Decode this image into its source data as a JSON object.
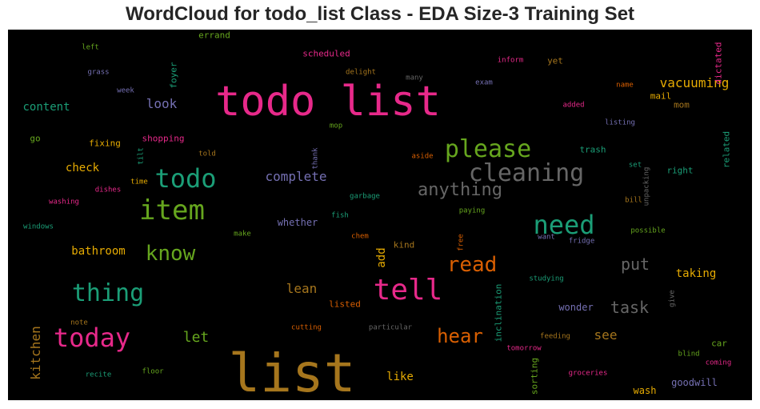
{
  "chart_data": {
    "type": "wordcloud",
    "title": "WordCloud for todo_list Class - EDA Size-3 Training Set",
    "words": [
      {
        "text": "list",
        "color": "#a6761d"
      },
      {
        "text": "todo list",
        "color": "#e7298a"
      },
      {
        "text": "tell",
        "color": "#e7298a"
      },
      {
        "text": "item",
        "color": "#66a61e"
      },
      {
        "text": "todo",
        "color": "#1b9e77"
      },
      {
        "text": "please",
        "color": "#66a61e"
      },
      {
        "text": "cleaning",
        "color": "#666666"
      },
      {
        "text": "need",
        "color": "#1b9e77"
      },
      {
        "text": "today",
        "color": "#e7298a"
      },
      {
        "text": "thing",
        "color": "#1b9e77"
      },
      {
        "text": "know",
        "color": "#66a61e"
      },
      {
        "text": "anything",
        "color": "#666666"
      },
      {
        "text": "read",
        "color": "#d95f02"
      },
      {
        "text": "hear",
        "color": "#d95f02"
      },
      {
        "text": "vacuuming",
        "color": "#e6ab02"
      },
      {
        "text": "put",
        "color": "#666666"
      },
      {
        "text": "task",
        "color": "#666666"
      },
      {
        "text": "complete",
        "color": "#7570b3"
      },
      {
        "text": "look",
        "color": "#7570b3"
      },
      {
        "text": "let",
        "color": "#66a61e"
      },
      {
        "text": "see",
        "color": "#a6761d"
      },
      {
        "text": "lean",
        "color": "#a6761d"
      },
      {
        "text": "bathroom",
        "color": "#e6ab02"
      },
      {
        "text": "kitchen",
        "color": "#a6761d"
      },
      {
        "text": "content",
        "color": "#1b9e77"
      },
      {
        "text": "check",
        "color": "#e6ab02"
      },
      {
        "text": "taking",
        "color": "#e6ab02"
      },
      {
        "text": "add",
        "color": "#e6ab02"
      },
      {
        "text": "like",
        "color": "#e6ab02"
      },
      {
        "text": "whether",
        "color": "#7570b3"
      },
      {
        "text": "wonder",
        "color": "#7570b3"
      },
      {
        "text": "inclination",
        "color": "#1b9e77"
      },
      {
        "text": "goodwill",
        "color": "#7570b3"
      },
      {
        "text": "wash",
        "color": "#e6ab02"
      },
      {
        "text": "listed",
        "color": "#d95f02"
      },
      {
        "text": "mail",
        "color": "#e6ab02"
      },
      {
        "text": "mom",
        "color": "#a6761d"
      },
      {
        "text": "right",
        "color": "#1b9e77"
      },
      {
        "text": "related",
        "color": "#1b9e77"
      },
      {
        "text": "trash",
        "color": "#1b9e77"
      },
      {
        "text": "car",
        "color": "#66a61e"
      },
      {
        "text": "kind",
        "color": "#a6761d"
      },
      {
        "text": "fixing",
        "color": "#e6ab02"
      },
      {
        "text": "shopping",
        "color": "#e7298a"
      },
      {
        "text": "scheduled",
        "color": "#e7298a"
      },
      {
        "text": "errand",
        "color": "#66a61e"
      },
      {
        "text": "yet",
        "color": "#a6761d"
      },
      {
        "text": "go",
        "color": "#66a61e"
      },
      {
        "text": "foyer",
        "color": "#1b9e77"
      },
      {
        "text": "dictated",
        "color": "#e7298a"
      },
      {
        "text": "sorting",
        "color": "#66a61e"
      },
      {
        "text": "left",
        "color": "#66a61e"
      },
      {
        "text": "grass",
        "color": "#7570b3"
      },
      {
        "text": "week",
        "color": "#7570b3"
      },
      {
        "text": "delight",
        "color": "#a6761d"
      },
      {
        "text": "many",
        "color": "#666666"
      },
      {
        "text": "inform",
        "color": "#e7298a"
      },
      {
        "text": "exam",
        "color": "#7570b3"
      },
      {
        "text": "name",
        "color": "#d95f02"
      },
      {
        "text": "added",
        "color": "#e7298a"
      },
      {
        "text": "listing",
        "color": "#7570b3"
      },
      {
        "text": "mop",
        "color": "#66a61e"
      },
      {
        "text": "tilt",
        "color": "#1b9e77"
      },
      {
        "text": "told",
        "color": "#a6761d"
      },
      {
        "text": "thank",
        "color": "#7570b3"
      },
      {
        "text": "aside",
        "color": "#d95f02"
      },
      {
        "text": "time",
        "color": "#e6ab02"
      },
      {
        "text": "dishes",
        "color": "#e7298a"
      },
      {
        "text": "washing",
        "color": "#e7298a"
      },
      {
        "text": "garbage",
        "color": "#1b9e77"
      },
      {
        "text": "set",
        "color": "#1b9e77"
      },
      {
        "text": "unpacking",
        "color": "#666666"
      },
      {
        "text": "bill",
        "color": "#a6761d"
      },
      {
        "text": "paying",
        "color": "#66a61e"
      },
      {
        "text": "windows",
        "color": "#1b9e77"
      },
      {
        "text": "make",
        "color": "#66a61e"
      },
      {
        "text": "fish",
        "color": "#1b9e77"
      },
      {
        "text": "chem",
        "color": "#d95f02"
      },
      {
        "text": "free",
        "color": "#d95f02"
      },
      {
        "text": "want",
        "color": "#7570b3"
      },
      {
        "text": "fridge",
        "color": "#7570b3"
      },
      {
        "text": "possible",
        "color": "#66a61e"
      },
      {
        "text": "studying",
        "color": "#1b9e77"
      },
      {
        "text": "give",
        "color": "#666666"
      },
      {
        "text": "note",
        "color": "#a6761d"
      },
      {
        "text": "cutting",
        "color": "#d95f02"
      },
      {
        "text": "particular",
        "color": "#666666"
      },
      {
        "text": "feeding",
        "color": "#a6761d"
      },
      {
        "text": "tomorrow",
        "color": "#e7298a"
      },
      {
        "text": "blind",
        "color": "#66a61e"
      },
      {
        "text": "coming",
        "color": "#e7298a"
      },
      {
        "text": "recite",
        "color": "#1b9e77"
      },
      {
        "text": "floor",
        "color": "#66a61e"
      },
      {
        "text": "groceries",
        "color": "#e7298a"
      }
    ]
  }
}
